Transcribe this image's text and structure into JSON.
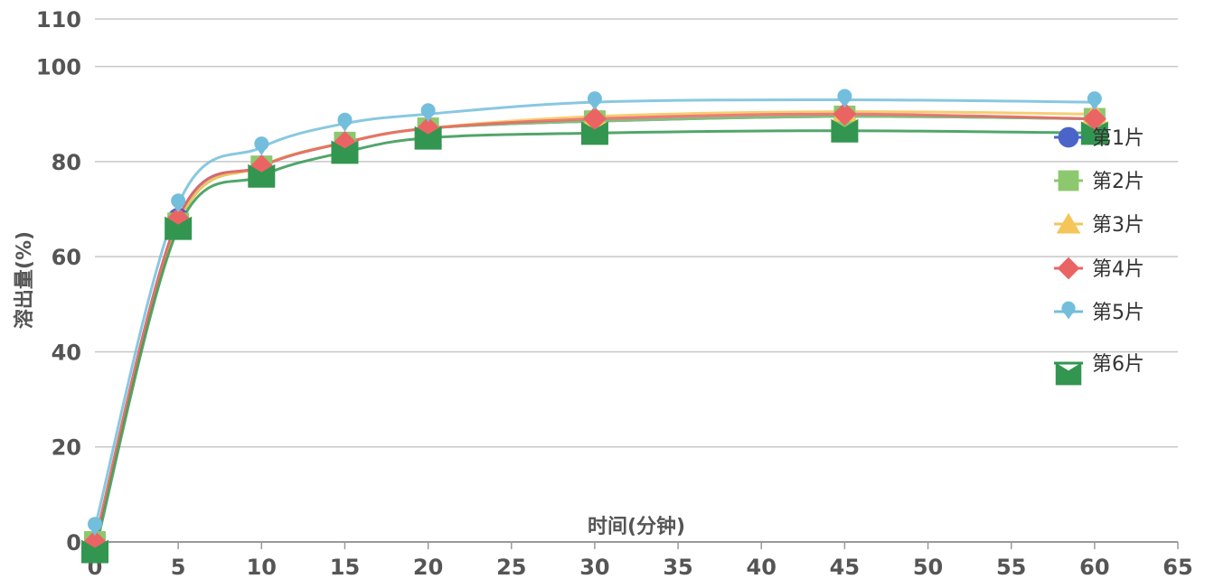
{
  "chart_data": {
    "type": "line",
    "title": "",
    "xlabel": "时间(分钟)",
    "ylabel": "溶出量(%)",
    "xlim": [
      0,
      65
    ],
    "ylim": [
      0,
      110
    ],
    "xticks": [
      0,
      5,
      10,
      15,
      20,
      25,
      30,
      35,
      40,
      45,
      50,
      55,
      60,
      65
    ],
    "yticks": [
      0,
      20,
      40,
      60,
      80,
      100,
      110
    ],
    "grid": true,
    "legend_position": "right",
    "smooth": true,
    "x": [
      0,
      5,
      10,
      15,
      20,
      30,
      45,
      60
    ],
    "series": [
      {
        "name": "第1片",
        "marker": "circle",
        "color": "#4a64c8",
        "values": [
          0,
          68,
          79,
          84,
          87,
          88.5,
          89.5,
          89
        ]
      },
      {
        "name": "第2片",
        "marker": "square",
        "color": "#8cc86e",
        "values": [
          0,
          67,
          79,
          84,
          87,
          88.5,
          89.5,
          89
        ]
      },
      {
        "name": "第3片",
        "marker": "triangle",
        "color": "#f5c55a",
        "values": [
          0,
          67,
          79,
          84,
          87,
          89.5,
          90.5,
          90
        ]
      },
      {
        "name": "第4片",
        "marker": "diamond",
        "color": "#eb6464",
        "values": [
          0,
          68,
          79,
          84,
          87,
          89,
          90,
          89
        ]
      },
      {
        "name": "第5片",
        "marker": "pin",
        "color": "#73bedc",
        "values": [
          3,
          71,
          83,
          88,
          90,
          92.5,
          93,
          92.5
        ]
      },
      {
        "name": "第6片",
        "marker": "flag",
        "color": "#329650",
        "values": [
          -2,
          66,
          77,
          82,
          85,
          86,
          86.5,
          86
        ]
      }
    ]
  }
}
